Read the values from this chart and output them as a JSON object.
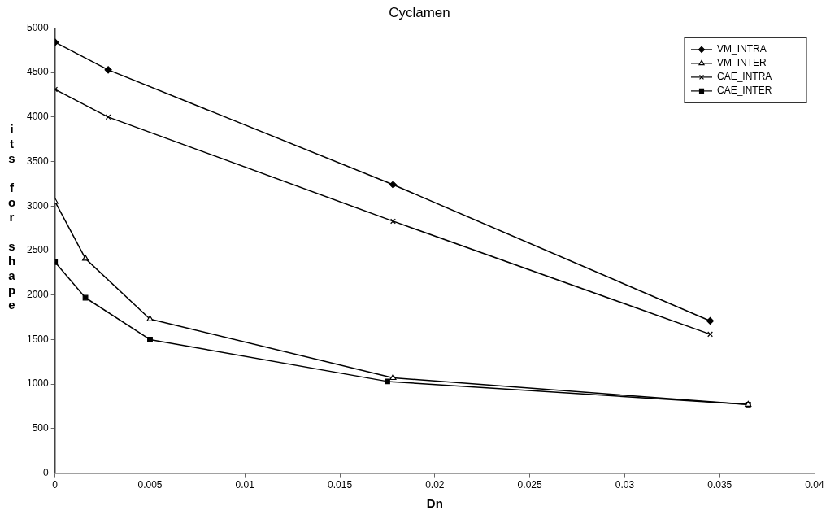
{
  "chart_data": {
    "type": "line",
    "title": "Cyclamen",
    "xlabel": "Dn",
    "ylabel": "its for shape",
    "xlim": [
      0,
      0.04
    ],
    "xticks": [
      0,
      0.005,
      0.01,
      0.015,
      0.02,
      0.025,
      0.03,
      0.035,
      0.04
    ],
    "ylim": [
      0,
      5000
    ],
    "yticks": [
      0,
      500,
      1000,
      1500,
      2000,
      2500,
      3000,
      3500,
      4000,
      4500,
      5000
    ],
    "grid": false,
    "legend": "top right",
    "line_style": "solid",
    "series": [
      {
        "name": "VM_INTRA",
        "color": "#000000",
        "marker": "diamond",
        "x": [
          0,
          0.0028,
          0.0178,
          0.0345
        ],
        "values": [
          4840,
          4530,
          3240,
          1710
        ]
      },
      {
        "name": "VM_INTER",
        "color": "#000000",
        "marker": "triangle",
        "x": [
          0,
          0.0016,
          0.005,
          0.0178,
          0.0365
        ],
        "values": [
          3050,
          2410,
          1730,
          1070,
          770
        ]
      },
      {
        "name": "CAE_INTRA",
        "color": "#000000",
        "marker": "cross",
        "x": [
          0,
          0.0028,
          0.0178,
          0.0345
        ],
        "values": [
          4310,
          4000,
          2830,
          1560
        ]
      },
      {
        "name": "CAE_INTER",
        "color": "#000000",
        "marker": "square",
        "x": [
          0,
          0.0016,
          0.005,
          0.0175,
          0.0365
        ],
        "values": [
          2370,
          1970,
          1500,
          1030,
          770
        ]
      }
    ]
  }
}
